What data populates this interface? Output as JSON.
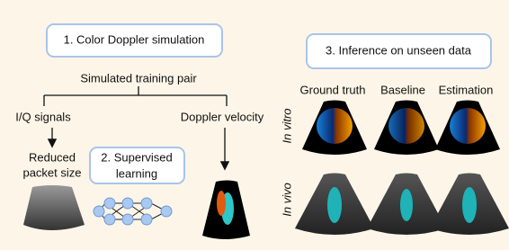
{
  "step1": {
    "title": "1. Color Doppler simulation"
  },
  "training_pair": "Simulated training pair",
  "branches": [
    "I/Q signals",
    "Doppler velocity"
  ],
  "reduced": [
    "Reduced",
    "packet size"
  ],
  "step2": {
    "title": [
      "2. Supervised",
      "learning"
    ]
  },
  "step3": {
    "title": "3. Inference on unseen data"
  },
  "columns": [
    "Ground truth",
    "Baseline",
    "Estimation"
  ],
  "rows": [
    "In vitro",
    "In vivo"
  ]
}
